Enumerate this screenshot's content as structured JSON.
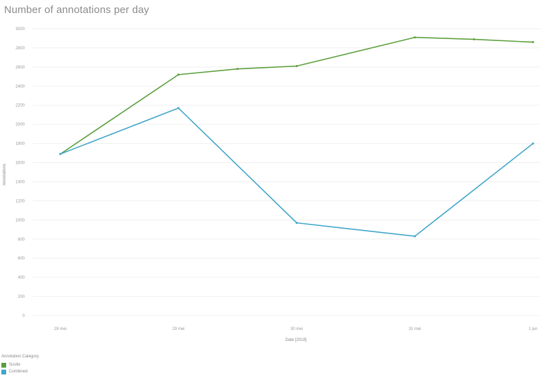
{
  "chart_data": {
    "type": "line",
    "title": "Number of annotations per day",
    "xlabel": "Date [2018]",
    "ylabel": "Annotations",
    "categories": [
      "28 mei",
      "29 mei",
      "30 mei",
      "31 mei",
      "1 jun"
    ],
    "ylim": [
      0,
      3000
    ],
    "yticks": [
      0,
      200,
      400,
      600,
      800,
      1000,
      1200,
      1400,
      1600,
      1800,
      2000,
      2200,
      2400,
      2600,
      2800,
      3000
    ],
    "grid": true,
    "legend_position": "bottom-left",
    "legend_title": "Annotation Category",
    "series": [
      {
        "name": "Sustie",
        "color": "#5a9e3a",
        "points": [
          {
            "x": 0,
            "y": 1690
          },
          {
            "x": 1,
            "y": 2520
          },
          {
            "x": 1.5,
            "y": 2580
          },
          {
            "x": 2,
            "y": 2610
          },
          {
            "x": 3,
            "y": 2910
          },
          {
            "x": 3.5,
            "y": 2890
          },
          {
            "x": 4,
            "y": 2860
          }
        ]
      },
      {
        "name": "Combined",
        "color": "#3fa6c9",
        "points": [
          {
            "x": 0,
            "y": 1690
          },
          {
            "x": 1,
            "y": 2170
          },
          {
            "x": 2,
            "y": 970
          },
          {
            "x": 3,
            "y": 830
          },
          {
            "x": 4,
            "y": 1800
          }
        ]
      }
    ]
  }
}
